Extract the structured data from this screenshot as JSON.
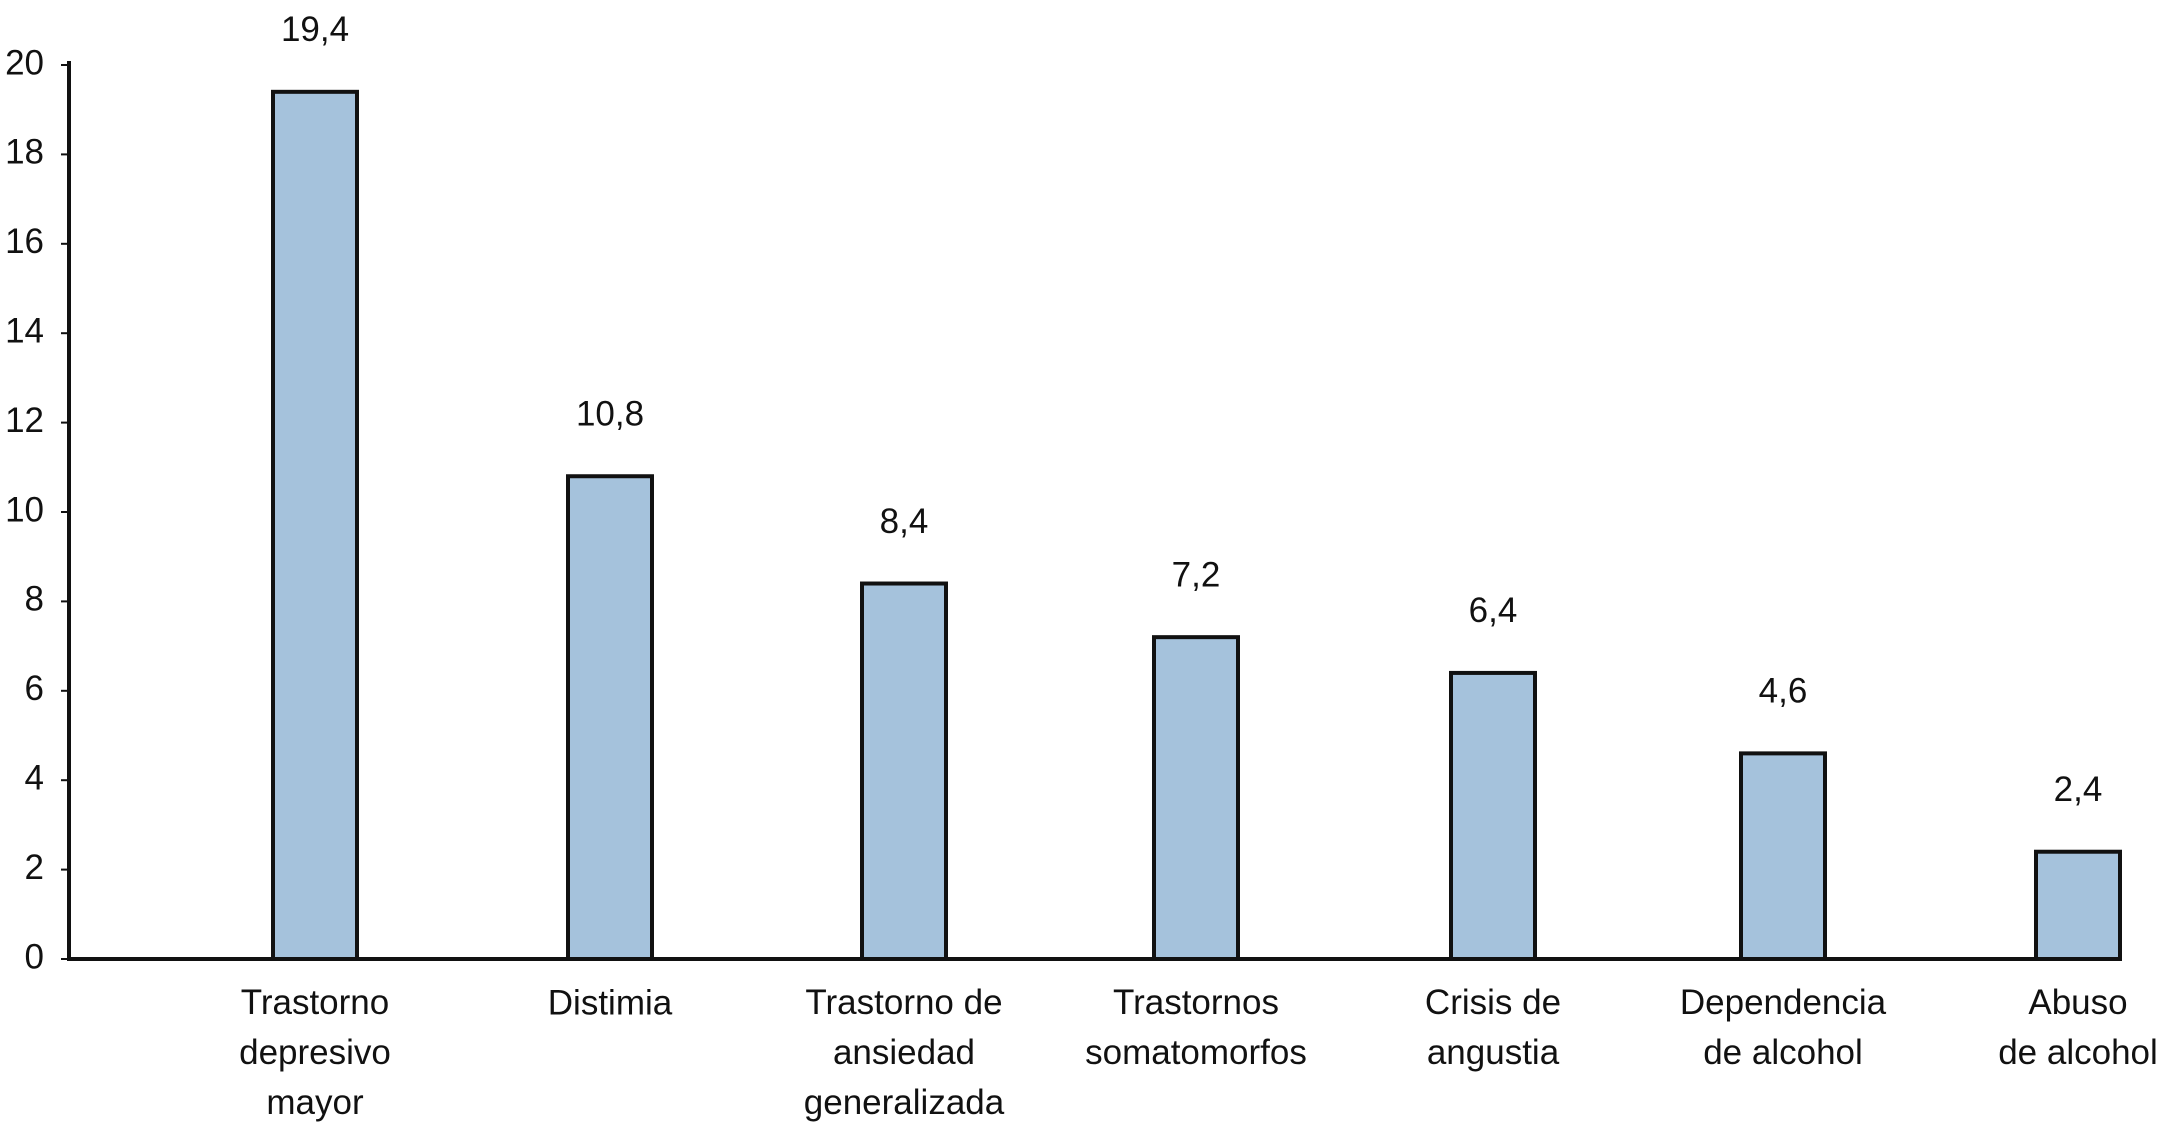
{
  "chart_data": {
    "type": "bar",
    "categories": [
      "Trastorno\ndepresivo\nmayor",
      "Distimia",
      "Trastorno de\nansiedad\ngeneralizada",
      "Trastornos\nsomatomorfos",
      "Crisis de\nangustia",
      "Dependencia\nde alcohol",
      "Abuso\nde alcohol"
    ],
    "values": [
      19.4,
      10.8,
      8.4,
      7.2,
      6.4,
      4.6,
      2.4
    ],
    "value_labels": [
      "19,4",
      "10,8",
      "8,4",
      "7,2",
      "6,4",
      "4,6",
      "2,4"
    ],
    "color": "#a5c2dc",
    "ylim": [
      0,
      20
    ],
    "yticks": [
      0,
      2,
      4,
      6,
      8,
      10,
      12,
      14,
      16,
      18,
      20
    ],
    "grid": false
  }
}
